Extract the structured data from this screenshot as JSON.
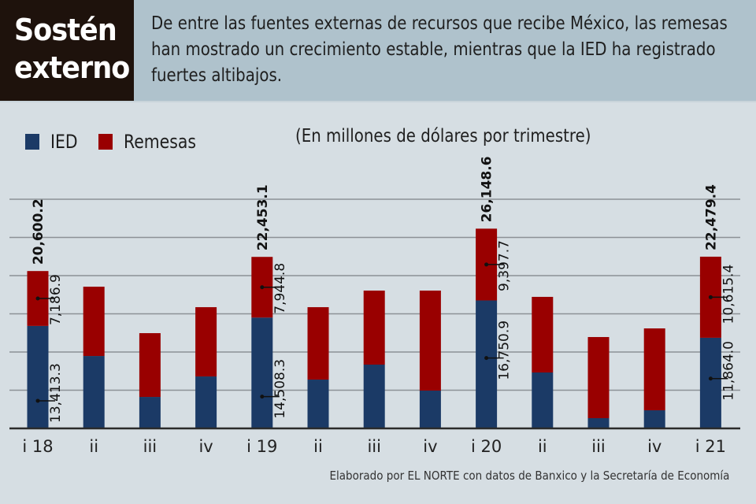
{
  "header": {
    "title_line1": "Sostén",
    "title_line2": "externo",
    "description": "De entre las fuentes externas de recursos que recibe México, las remesas han mostrado un crecimiento estable, mientras que la IED ha registrado fuertes altibajos."
  },
  "colors": {
    "ied": "#1b3a66",
    "remesas": "#990000",
    "grid": "#8c9196",
    "axis": "#2b2b2b"
  },
  "chart_data": {
    "type": "bar",
    "stacked": true,
    "title": "Sostén externo",
    "subtitle": "(En millones de dólares por trimestre)",
    "xlabel": "",
    "ylabel": "",
    "ylim": [
      0,
      30000
    ],
    "grid": true,
    "gridlines": [
      5000,
      10000,
      15000,
      20000,
      25000,
      30000
    ],
    "legend_position": "top-left",
    "categories": [
      "i 18",
      "ii",
      "iii",
      "iv",
      "i 19",
      "ii",
      "iii",
      "iv",
      "i 20",
      "ii",
      "iii",
      "iv",
      "i 21"
    ],
    "series": [
      {
        "name": "IED",
        "values": [
          13413.3,
          9480,
          4120,
          6800,
          14508.3,
          6390,
          8350,
          4950,
          16750.9,
          7320,
          1340,
          2370,
          11864.0
        ]
      },
      {
        "name": "Remesas",
        "values": [
          7186.9,
          9070,
          8350,
          9070,
          7944.8,
          9480,
          9690,
          13090,
          9397.7,
          9900,
          10620,
          10720,
          10615.4
        ]
      }
    ],
    "totals": [
      20600.2,
      18550,
      12470,
      15870,
      22453.1,
      15870,
      18040,
      18040,
      26148.6,
      17220,
      11960,
      13090,
      22479.4
    ],
    "annotations": [
      {
        "index": 0,
        "total_label": "20,600.2",
        "ied_label": "13,413.3",
        "remesas_label": "7,186.9"
      },
      {
        "index": 4,
        "total_label": "22,453.1",
        "ied_label": "14,508.3",
        "remesas_label": "7,944.8"
      },
      {
        "index": 8,
        "total_label": "26,148.6",
        "ied_label": "16,750.9",
        "remesas_label": "9,397.7"
      },
      {
        "index": 12,
        "total_label": "22,479.4",
        "ied_label": "11,864.0",
        "remesas_label": "10,615.4"
      }
    ]
  },
  "legend": {
    "items": [
      {
        "label": "IED"
      },
      {
        "label": "Remesas"
      }
    ]
  },
  "source": "Elaborado por EL NORTE con datos de Banxico y la Secretaría de Economía"
}
